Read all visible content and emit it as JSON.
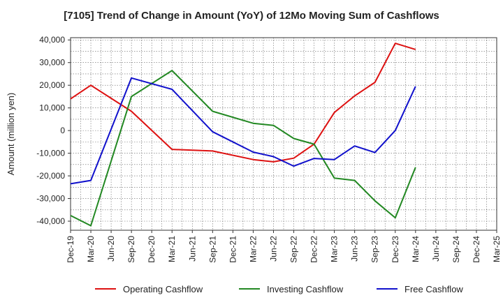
{
  "chart_data": {
    "type": "line",
    "title": "[7105]  Trend of Change in Amount (YoY) of 12Mo Moving Sum of Cashflows",
    "xlabel": "",
    "ylabel": "Amount (million yen)",
    "ylim": [
      -44000,
      41000
    ],
    "yticks": [
      40000,
      30000,
      20000,
      10000,
      0,
      -10000,
      -20000,
      -30000,
      -40000
    ],
    "ytick_labels": [
      "40,000",
      "30,000",
      "20,000",
      "10,000",
      "0",
      "-10,000",
      "-20,000",
      "-30,000",
      "-40,000"
    ],
    "grid": true,
    "legend_position": "bottom",
    "categories": [
      "Dec-19",
      "Mar-20",
      "Jun-20",
      "Sep-20",
      "Dec-20",
      "Mar-21",
      "Jun-21",
      "Sep-21",
      "Dec-21",
      "Mar-22",
      "Jun-22",
      "Sep-22",
      "Dec-22",
      "Mar-23",
      "Jun-23",
      "Sep-23",
      "Dec-23",
      "Mar-24",
      "Jun-24",
      "Sep-24",
      "Dec-24",
      "Mar-25"
    ],
    "series": [
      {
        "name": "Operating Cashflow",
        "color": "#dd1111",
        "values": [
          14000,
          20000,
          null,
          8500,
          null,
          -8300,
          null,
          -9000,
          null,
          -12800,
          -13800,
          -12200,
          -6000,
          8000,
          15300,
          21300,
          38500,
          35800,
          null,
          null,
          null,
          null
        ]
      },
      {
        "name": "Investing Cashflow",
        "color": "#228822",
        "values": [
          -37500,
          -42000,
          null,
          15000,
          null,
          26500,
          null,
          8500,
          null,
          3200,
          2300,
          -3500,
          -6000,
          -21000,
          -22000,
          -31000,
          -38500,
          -16200,
          null,
          null,
          null,
          null
        ]
      },
      {
        "name": "Free Cashflow",
        "color": "#1111cc",
        "values": [
          -23500,
          -22000,
          null,
          23200,
          null,
          18200,
          null,
          -500,
          null,
          -9500,
          -11500,
          -15700,
          -12300,
          -12800,
          -6800,
          -9700,
          0,
          19500,
          null,
          null,
          null,
          null
        ]
      }
    ]
  }
}
